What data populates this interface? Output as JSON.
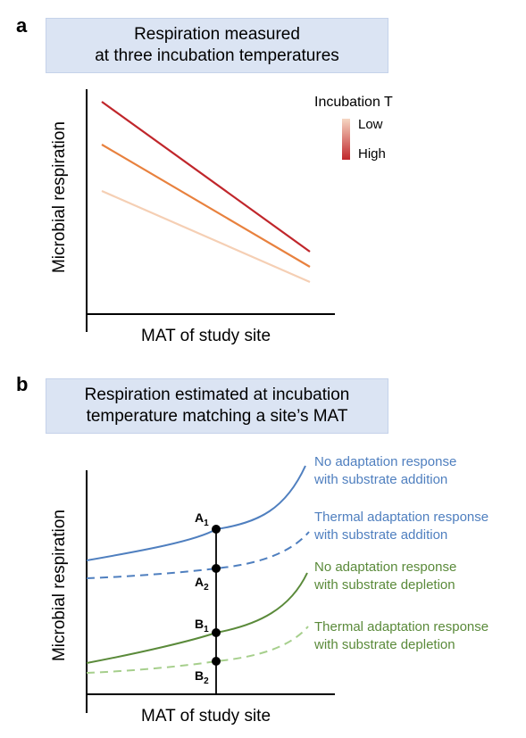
{
  "panel_a": {
    "letter": "a",
    "title": "Respiration measured\nat three incubation temperatures",
    "y_axis_label": "Microbial respiration",
    "x_axis_label": "MAT of study site",
    "legend": {
      "title": "Incubation T",
      "low_label": "Low",
      "high_label": "High",
      "gradient_low_color": "#f6d7c3",
      "gradient_high_color": "#c0262b"
    },
    "series_colors": {
      "high": "#c0262b",
      "mid": "#e8813e",
      "low": "#f5cfb4"
    }
  },
  "panel_b": {
    "letter": "b",
    "title": "Respiration estimated at incubation\ntemperature matching a site’s MAT",
    "y_axis_label": "Microbial respiration",
    "x_axis_label": "MAT of study site",
    "curves": [
      {
        "label": "No adaptation response\nwith substrate addition",
        "color": "#4f7fbf",
        "style": "solid"
      },
      {
        "label": "Thermal adaptation response\nwith substrate addition",
        "color": "#4f7fbf",
        "style": "dashed"
      },
      {
        "label": "No adaptation response\nwith substrate depletion",
        "color": "#5a8a3a",
        "style": "solid"
      },
      {
        "label": "Thermal adaptation response\nwith substrate depletion",
        "color": "#a6cf8c",
        "style": "dashed"
      }
    ],
    "points": [
      {
        "letter": "A",
        "sub": "1"
      },
      {
        "letter": "A",
        "sub": "2"
      },
      {
        "letter": "B",
        "sub": "1"
      },
      {
        "letter": "B",
        "sub": "2"
      }
    ]
  }
}
